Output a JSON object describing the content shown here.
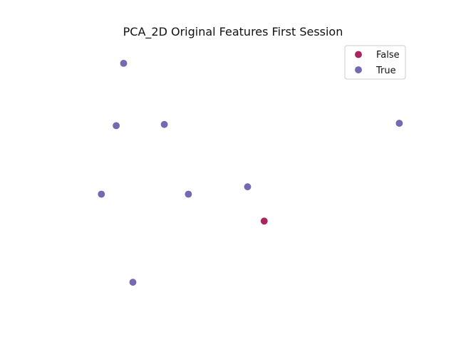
{
  "chart_data": {
    "type": "scatter",
    "title": "PCA_2D Original Features First Session",
    "xlabel": "",
    "ylabel": "",
    "grid": false,
    "axes_visible": false,
    "legend_position": "top-right",
    "series": [
      {
        "name": "False",
        "color": "#a3124f",
        "points": [
          {
            "x": 0.38,
            "y": -0.32
          }
        ]
      },
      {
        "name": "True",
        "color": "#6a5bab",
        "points": [
          {
            "x": -0.38,
            "y": 0.97
          },
          {
            "x": -0.42,
            "y": 0.46
          },
          {
            "x": -0.16,
            "y": 0.47
          },
          {
            "x": 1.11,
            "y": 0.48
          },
          {
            "x": -0.5,
            "y": -0.1
          },
          {
            "x": 0.29,
            "y": -0.04
          },
          {
            "x": -0.03,
            "y": -0.1
          },
          {
            "x": -0.33,
            "y": -0.82
          }
        ]
      }
    ],
    "xlim": [
      -0.74,
      1.17
    ],
    "ylim": [
      -1.0,
      1.15
    ]
  }
}
